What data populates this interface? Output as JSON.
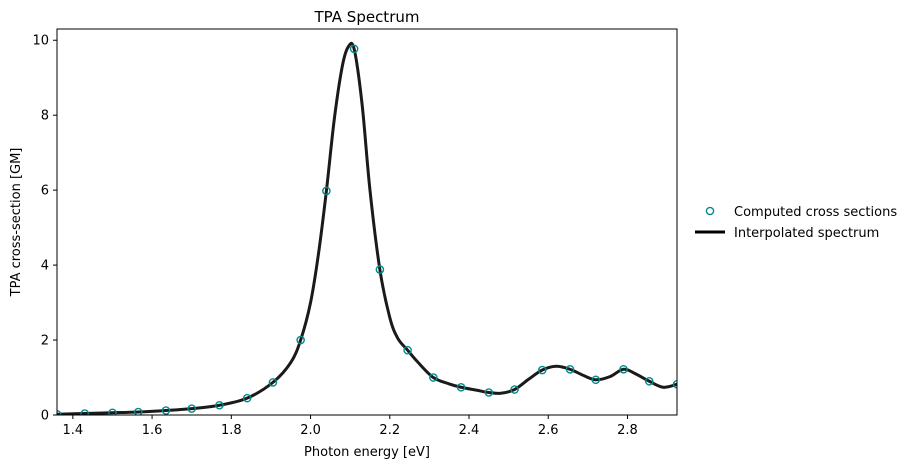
{
  "chart_data": {
    "type": "line",
    "title": "TPA Spectrum",
    "xlabel": "Photon energy [eV]",
    "ylabel": "TPA cross-section [GM]",
    "xlim": [
      1.36,
      2.925
    ],
    "ylim": [
      0,
      10.3
    ],
    "xticks": [
      1.4,
      1.6,
      1.8,
      2.0,
      2.2,
      2.4,
      2.6,
      2.8
    ],
    "xtick_labels": [
      "1.4",
      "1.6",
      "1.8",
      "2.0",
      "2.2",
      "2.4",
      "2.6",
      "2.8"
    ],
    "yticks": [
      0,
      2,
      4,
      6,
      8,
      10
    ],
    "ytick_labels": [
      "0",
      "2",
      "4",
      "6",
      "8",
      "10"
    ],
    "grid": false,
    "legend_position": "right",
    "series": [
      {
        "name": "Computed cross sections",
        "kind": "scatter",
        "marker": "open-circle",
        "color": "#008b8b",
        "x": [
          1.36,
          1.43,
          1.5,
          1.565,
          1.635,
          1.7,
          1.77,
          1.84,
          1.905,
          1.975,
          2.04,
          2.11,
          2.175,
          2.245,
          2.31,
          2.38,
          2.45,
          2.515,
          2.585,
          2.655,
          2.72,
          2.79,
          2.855,
          2.925
        ],
        "y": [
          0.02,
          0.04,
          0.06,
          0.08,
          0.12,
          0.17,
          0.26,
          0.45,
          0.87,
          2.0,
          5.98,
          9.77,
          3.88,
          1.73,
          1.0,
          0.74,
          0.6,
          0.68,
          1.2,
          1.22,
          0.94,
          1.22,
          0.9,
          0.82
        ]
      },
      {
        "name": "Interpolated spectrum",
        "kind": "line",
        "color": "#1a1a1a",
        "x": [
          1.36,
          1.43,
          1.5,
          1.565,
          1.635,
          1.7,
          1.77,
          1.84,
          1.905,
          1.95,
          1.975,
          2.0,
          2.02,
          2.04,
          2.06,
          2.08,
          2.095,
          2.11,
          2.13,
          2.15,
          2.175,
          2.2,
          2.22,
          2.245,
          2.27,
          2.31,
          2.35,
          2.38,
          2.42,
          2.45,
          2.48,
          2.515,
          2.55,
          2.585,
          2.62,
          2.655,
          2.69,
          2.72,
          2.755,
          2.79,
          2.82,
          2.855,
          2.89,
          2.925
        ],
        "y": [
          0.02,
          0.04,
          0.06,
          0.08,
          0.12,
          0.17,
          0.26,
          0.45,
          0.87,
          1.4,
          2.0,
          3.0,
          4.3,
          5.98,
          7.9,
          9.3,
          9.82,
          9.77,
          8.3,
          6.0,
          3.88,
          2.6,
          2.05,
          1.73,
          1.42,
          1.0,
          0.83,
          0.74,
          0.66,
          0.6,
          0.58,
          0.68,
          0.95,
          1.2,
          1.3,
          1.22,
          1.05,
          0.94,
          1.02,
          1.22,
          1.1,
          0.9,
          0.74,
          0.82
        ]
      }
    ]
  }
}
